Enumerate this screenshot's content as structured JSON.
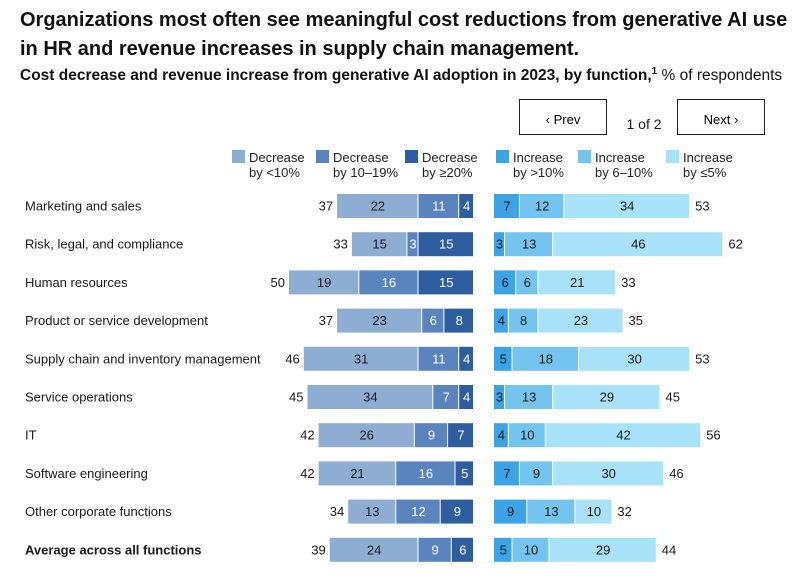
{
  "header": {
    "title_line1": "Organizations most often see meaningful cost reductions from generative AI use",
    "title_line2": "in HR and revenue increases in supply chain management.",
    "subtitle_bold": "Cost decrease and revenue increase from generative AI adoption in 2023, by function,",
    "subtitle_sup": "1",
    "subtitle_rest": " % of respondents"
  },
  "pager": {
    "prev_label": "Prev",
    "next_label": "Next",
    "indicator": "1 of 2"
  },
  "chart_data": {
    "type": "bar",
    "orientation": "horizontal diverging stacked",
    "categories": [
      "Marketing and sales",
      "Risk, legal, and compliance",
      "Human resources",
      "Product or service development",
      "Supply chain and inventory management",
      "Service operations",
      "IT",
      "Software engineering",
      "Other corporate functions",
      "Average across all functions"
    ],
    "bold_categories": [
      "Average across all functions"
    ],
    "decrease_series": [
      {
        "name": "Decrease by <10%",
        "name_lines": [
          "Decrease",
          "by <10%"
        ],
        "color": "#8eadd2",
        "label_color": "#1a1a1a",
        "values": [
          22,
          15,
          19,
          23,
          31,
          34,
          26,
          21,
          13,
          24
        ]
      },
      {
        "name": "Decrease by 10–19%",
        "name_lines": [
          "Decrease",
          "by 10–19%"
        ],
        "color": "#5a84be",
        "label_color": "#ffffff",
        "values": [
          11,
          3,
          16,
          6,
          11,
          7,
          9,
          16,
          12,
          9
        ]
      },
      {
        "name": "Decrease by ≥20%",
        "name_lines": [
          "Decrease",
          "by ≥20%"
        ],
        "color": "#2f5ea0",
        "label_color": "#ffffff",
        "values": [
          4,
          15,
          15,
          8,
          4,
          4,
          7,
          5,
          9,
          6
        ]
      }
    ],
    "decrease_totals": [
      37,
      33,
      50,
      37,
      46,
      45,
      42,
      42,
      34,
      39
    ],
    "increase_series": [
      {
        "name": "Increase by >10%",
        "name_lines": [
          "Increase",
          "by >10%"
        ],
        "color": "#3ba3e6",
        "label_color": "#1a1a1a",
        "values": [
          7,
          3,
          6,
          4,
          5,
          3,
          4,
          7,
          9,
          5
        ]
      },
      {
        "name": "Increase by 6–10%",
        "name_lines": [
          "Increase",
          "by 6–10%"
        ],
        "color": "#73c5f0",
        "label_color": "#1a1a1a",
        "values": [
          12,
          13,
          6,
          8,
          18,
          13,
          10,
          9,
          13,
          10
        ]
      },
      {
        "name": "Increase by ≤5%",
        "name_lines": [
          "Increase",
          "by ≤5%"
        ],
        "color": "#a8e2f9",
        "label_color": "#1a1a1a",
        "values": [
          34,
          46,
          21,
          23,
          30,
          29,
          42,
          30,
          10,
          29
        ]
      }
    ],
    "increase_totals": [
      53,
      62,
      33,
      35,
      53,
      45,
      56,
      46,
      32,
      44
    ],
    "unit": "% of respondents"
  }
}
